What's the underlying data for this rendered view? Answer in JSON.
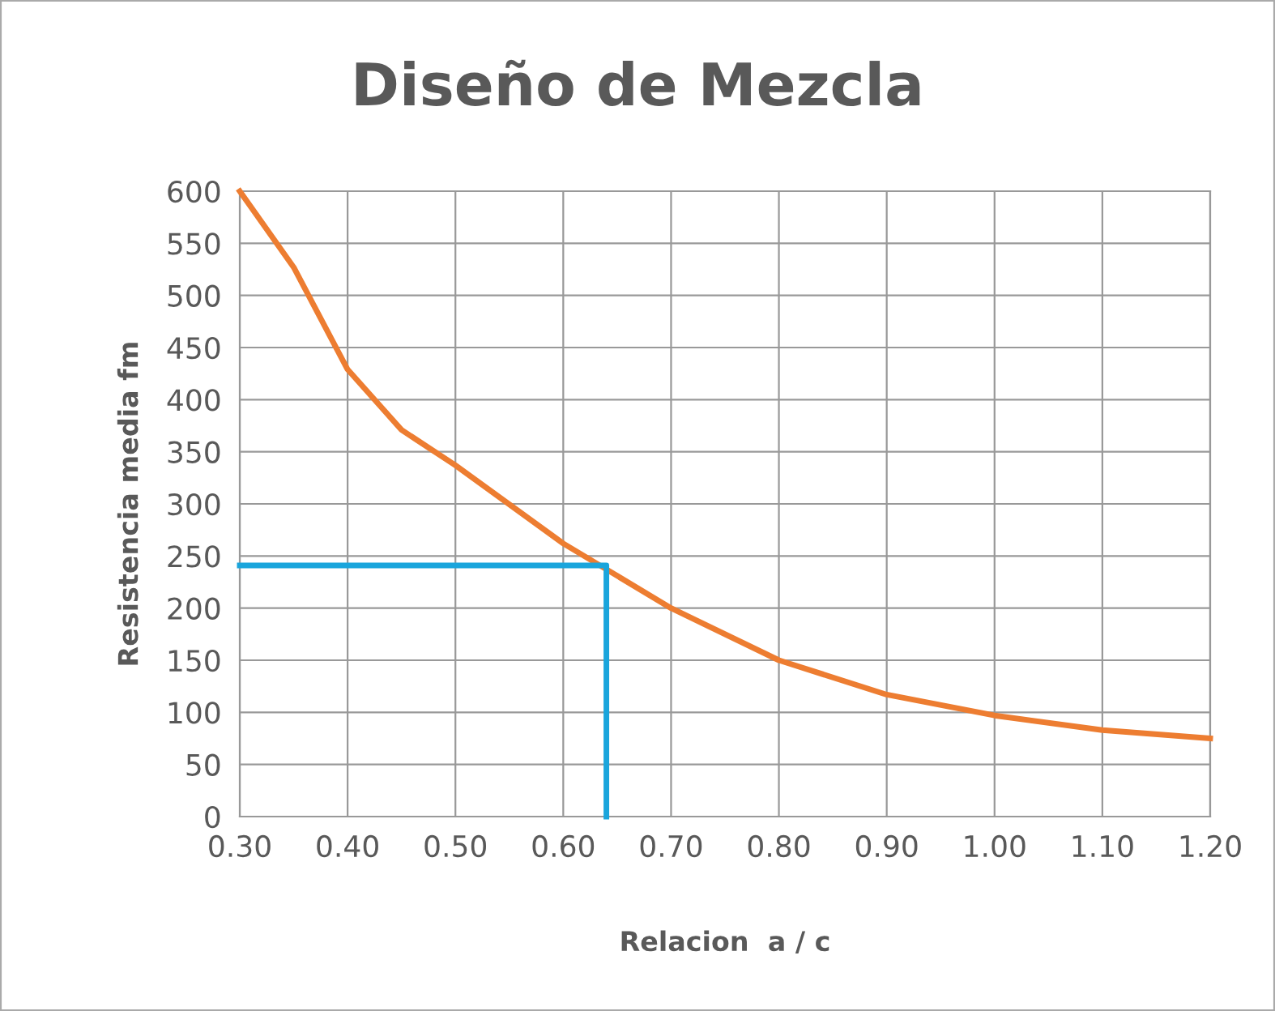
{
  "chart_data": {
    "type": "line",
    "title": "Diseño de Mezcla",
    "xlabel": "Relacion  a / c",
    "ylabel": "Resistencia media fm",
    "xlim": [
      0.3,
      1.2
    ],
    "xticks": [
      {
        "value": 0.3,
        "label": "0.30"
      },
      {
        "value": 0.4,
        "label": "0.40"
      },
      {
        "value": 0.5,
        "label": "0.50"
      },
      {
        "value": 0.6,
        "label": "0.60"
      },
      {
        "value": 0.7,
        "label": "0.70"
      },
      {
        "value": 0.8,
        "label": "0.80"
      },
      {
        "value": 0.9,
        "label": "0.90"
      },
      {
        "value": 1.0,
        "label": "1.00"
      },
      {
        "value": 1.1,
        "label": "1.10"
      },
      {
        "value": 1.2,
        "label": "1.20"
      }
    ],
    "ylim": [
      0,
      600
    ],
    "yticks": [
      0,
      50,
      100,
      150,
      200,
      250,
      300,
      350,
      400,
      450,
      500,
      550,
      600
    ],
    "grid": true,
    "marker": "none",
    "line_style": "solid",
    "series": [
      {
        "color": "#ed7d31",
        "x": [
          0.3,
          0.35,
          0.4,
          0.45,
          0.5,
          0.6,
          0.7,
          0.8,
          0.9,
          1.0,
          1.1,
          1.2
        ],
        "values": [
          600,
          527,
          429,
          371,
          337,
          262,
          200,
          150,
          117,
          97,
          83,
          75
        ]
      },
      {
        "color": "#1aa5dc",
        "x": [
          0.3,
          0.64,
          0.64
        ],
        "values": [
          241,
          241,
          0
        ]
      }
    ]
  }
}
